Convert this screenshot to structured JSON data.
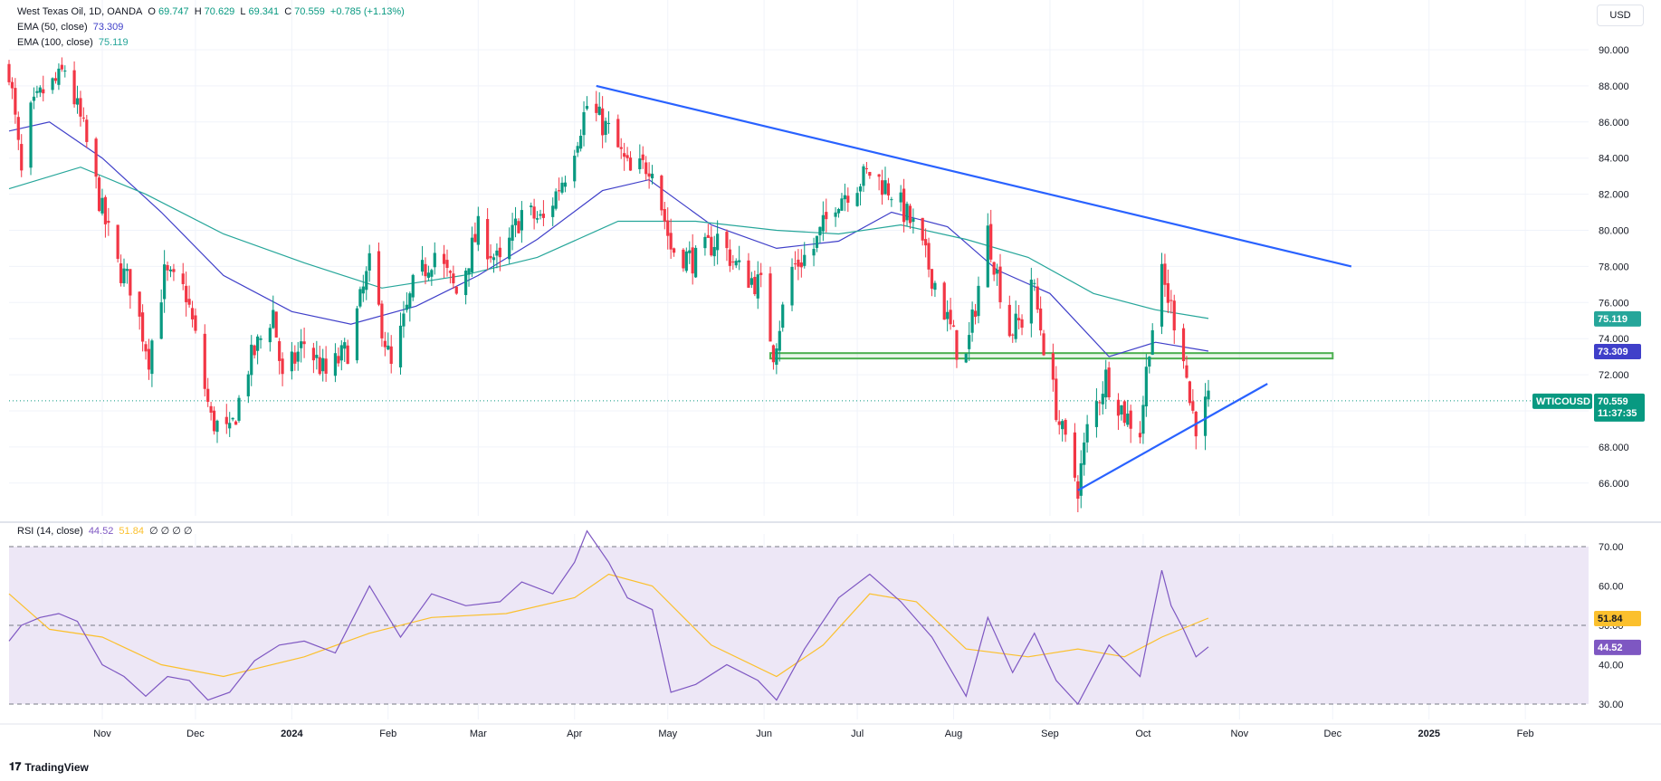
{
  "legend": {
    "symbol": "West Texas Oil, 1D, OANDA",
    "o_label": "O",
    "o": "69.747",
    "h_label": "H",
    "h": "70.629",
    "l_label": "L",
    "l": "69.341",
    "c_label": "C",
    "c": "70.559",
    "change": "+0.785 (+1.13%)",
    "ema50_label": "EMA (50, close)",
    "ema50_value": "73.309",
    "ema100_label": "EMA (100, close)",
    "ema100_value": "75.119",
    "rsi_label": "RSI (14, close)",
    "rsi_value": "44.52",
    "rsi_ma_value": "51.84",
    "rsi_extra": "∅ ∅ ∅ ∅"
  },
  "currency_button": "USD",
  "brand": "TradingView",
  "price_tag": {
    "symbol": "WTICOUSD",
    "price": "70.559",
    "countdown": "11:37:35"
  },
  "ema100_tag": "75.119",
  "ema50_tag": "73.309",
  "rsi_ma_tag": "51.84",
  "rsi_tag": "44.52",
  "colors": {
    "up": "#089981",
    "down": "#f23645",
    "ema50": "#3f3fc9",
    "ema100": "#26a69a",
    "trend": "#2962ff",
    "zone": "#4caf50",
    "rsi": "#7e57c2",
    "rsi_ma": "#fbc02d",
    "rsi_band": "#ede7f6",
    "grid": "#f0f3fa",
    "text": "#131722"
  },
  "chart_data": [
    {
      "type": "candlestick",
      "price_axis": {
        "min": 65,
        "max": 91,
        "ticks": [
          "90.000",
          "88.000",
          "86.000",
          "84.000",
          "82.000",
          "80.000",
          "78.000",
          "76.000",
          "74.000",
          "72.000",
          "70.000",
          "68.000",
          "66.000"
        ]
      },
      "time_axis": {
        "labels": [
          "Nov",
          "Dec",
          "2024",
          "Feb",
          "Mar",
          "Apr",
          "May",
          "Jun",
          "Jul",
          "Aug",
          "Sep",
          "Oct",
          "Nov",
          "Dec",
          "2025",
          "Feb"
        ]
      },
      "grid": true,
      "close_path": [
        [
          "2023-10-02",
          89.0
        ],
        [
          "2023-10-06",
          83.0
        ],
        [
          "2023-10-09",
          86.4
        ],
        [
          "2023-10-13",
          87.7
        ],
        [
          "2023-10-18",
          88.3
        ],
        [
          "2023-10-20",
          89.0
        ],
        [
          "2023-10-26",
          85.5
        ],
        [
          "2023-11-01",
          81.0
        ],
        [
          "2023-11-06",
          78.0
        ],
        [
          "2023-11-10",
          77.0
        ],
        [
          "2023-11-16",
          73.0
        ],
        [
          "2023-11-21",
          77.5
        ],
        [
          "2023-11-28",
          76.5
        ],
        [
          "2023-12-01",
          74.0
        ],
        [
          "2023-12-06",
          69.5
        ],
        [
          "2023-12-12",
          68.6
        ],
        [
          "2023-12-18",
          72.5
        ],
        [
          "2023-12-26",
          75.5
        ],
        [
          "2023-12-29",
          71.6
        ],
        [
          "2024-01-05",
          73.8
        ],
        [
          "2024-01-12",
          72.0
        ],
        [
          "2024-01-19",
          73.4
        ],
        [
          "2024-01-26",
          78.0
        ],
        [
          "2024-02-02",
          72.3
        ],
        [
          "2024-02-09",
          76.8
        ],
        [
          "2024-02-16",
          78.8
        ],
        [
          "2024-02-23",
          76.5
        ],
        [
          "2024-03-01",
          80.0
        ],
        [
          "2024-03-08",
          78.0
        ],
        [
          "2024-03-15",
          81.0
        ],
        [
          "2024-03-22",
          80.5
        ],
        [
          "2024-03-29",
          83.2
        ],
        [
          "2024-04-05",
          86.9
        ],
        [
          "2024-04-12",
          85.5
        ],
        [
          "2024-04-19",
          83.1
        ],
        [
          "2024-04-26",
          83.8
        ],
        [
          "2024-05-02",
          79.0
        ],
        [
          "2024-05-10",
          78.3
        ],
        [
          "2024-05-17",
          79.6
        ],
        [
          "2024-05-24",
          77.8
        ],
        [
          "2024-05-31",
          76.9
        ],
        [
          "2024-06-04",
          73.3
        ],
        [
          "2024-06-10",
          77.9
        ],
        [
          "2024-06-17",
          79.0
        ],
        [
          "2024-06-24",
          81.7
        ],
        [
          "2024-07-05",
          83.2
        ],
        [
          "2024-07-12",
          82.2
        ],
        [
          "2024-07-19",
          80.2
        ],
        [
          "2024-07-26",
          77.1
        ],
        [
          "2024-08-02",
          73.5
        ],
        [
          "2024-08-05",
          72.9
        ],
        [
          "2024-08-12",
          79.9
        ],
        [
          "2024-08-19",
          74.4
        ],
        [
          "2024-08-23",
          75.0
        ],
        [
          "2024-08-26",
          77.4
        ],
        [
          "2024-08-30",
          73.7
        ],
        [
          "2024-09-04",
          69.3
        ],
        [
          "2024-09-10",
          65.8
        ],
        [
          "2024-09-13",
          68.9
        ],
        [
          "2024-09-19",
          71.9
        ],
        [
          "2024-09-25",
          69.8
        ],
        [
          "2024-09-30",
          68.9
        ],
        [
          "2024-10-03",
          73.8
        ],
        [
          "2024-10-07",
          77.4
        ],
        [
          "2024-10-10",
          75.7
        ],
        [
          "2024-10-14",
          73.3
        ],
        [
          "2024-10-16",
          70.5
        ],
        [
          "2024-10-18",
          69.3
        ],
        [
          "2024-10-22",
          70.559
        ]
      ],
      "series": [
        {
          "name": "EMA (50, close)",
          "last": 73.309,
          "points": [
            [
              "2023-10-02",
              85.5
            ],
            [
              "2023-10-15",
              86.0
            ],
            [
              "2023-11-01",
              84.0
            ],
            [
              "2023-11-20",
              81.0
            ],
            [
              "2023-12-10",
              77.5
            ],
            [
              "2024-01-01",
              75.5
            ],
            [
              "2024-01-20",
              74.8
            ],
            [
              "2024-02-10",
              75.8
            ],
            [
              "2024-03-01",
              77.5
            ],
            [
              "2024-03-20",
              79.5
            ],
            [
              "2024-04-10",
              82.2
            ],
            [
              "2024-04-25",
              82.8
            ],
            [
              "2024-05-15",
              80.3
            ],
            [
              "2024-06-05",
              79.0
            ],
            [
              "2024-06-25",
              79.4
            ],
            [
              "2024-07-12",
              81.0
            ],
            [
              "2024-07-30",
              80.2
            ],
            [
              "2024-08-15",
              77.8
            ],
            [
              "2024-09-01",
              76.5
            ],
            [
              "2024-09-20",
              73.0
            ],
            [
              "2024-10-05",
              73.8
            ],
            [
              "2024-10-22",
              73.309
            ]
          ]
        },
        {
          "name": "EMA (100, close)",
          "last": 75.119,
          "points": [
            [
              "2023-10-02",
              82.3
            ],
            [
              "2023-10-25",
              83.5
            ],
            [
              "2023-11-15",
              82.0
            ],
            [
              "2023-12-10",
              79.8
            ],
            [
              "2024-01-05",
              78.2
            ],
            [
              "2024-01-30",
              76.8
            ],
            [
              "2024-02-25",
              77.5
            ],
            [
              "2024-03-20",
              78.5
            ],
            [
              "2024-04-15",
              80.5
            ],
            [
              "2024-05-10",
              80.5
            ],
            [
              "2024-06-05",
              80.0
            ],
            [
              "2024-06-25",
              79.8
            ],
            [
              "2024-07-15",
              80.3
            ],
            [
              "2024-08-05",
              79.5
            ],
            [
              "2024-08-25",
              78.5
            ],
            [
              "2024-09-15",
              76.5
            ],
            [
              "2024-10-05",
              75.6
            ],
            [
              "2024-10-22",
              75.119
            ]
          ]
        }
      ],
      "trendlines": [
        {
          "name": "descending resistance",
          "from": [
            "2024-04-08",
            88.0
          ],
          "to": [
            "2024-12-07",
            78.0
          ]
        },
        {
          "name": "ascending support",
          "from": [
            "2024-09-10",
            65.6
          ],
          "to": [
            "2024-11-10",
            71.5
          ]
        }
      ],
      "zones": [
        {
          "name": "support zone",
          "from": "2024-06-03",
          "to": "2024-12-01",
          "low": 72.9,
          "high": 73.2
        }
      ],
      "last_price": 70.559
    },
    {
      "type": "line",
      "title": "RSI (14, close)",
      "y_axis": {
        "min": 28,
        "max": 72,
        "ticks": [
          "70.00",
          "60.00",
          "50.00",
          "40.00",
          "30.00"
        ]
      },
      "levels": [
        70,
        50,
        30
      ],
      "series": [
        {
          "name": "RSI",
          "last": 44.52,
          "points": [
            [
              "2023-10-02",
              46
            ],
            [
              "2023-10-06",
              50
            ],
            [
              "2023-10-12",
              52
            ],
            [
              "2023-10-18",
              53
            ],
            [
              "2023-10-24",
              51
            ],
            [
              "2023-11-01",
              40
            ],
            [
              "2023-11-08",
              37
            ],
            [
              "2023-11-15",
              32
            ],
            [
              "2023-11-22",
              37
            ],
            [
              "2023-11-29",
              36
            ],
            [
              "2023-12-05",
              31
            ],
            [
              "2023-12-12",
              33
            ],
            [
              "2023-12-20",
              41
            ],
            [
              "2023-12-28",
              45
            ],
            [
              "2024-01-05",
              46
            ],
            [
              "2024-01-15",
              43
            ],
            [
              "2024-01-26",
              60
            ],
            [
              "2024-02-05",
              47
            ],
            [
              "2024-02-15",
              58
            ],
            [
              "2024-02-26",
              55
            ],
            [
              "2024-03-08",
              56
            ],
            [
              "2024-03-15",
              61
            ],
            [
              "2024-03-25",
              58
            ],
            [
              "2024-04-01",
              66
            ],
            [
              "2024-04-05",
              74
            ],
            [
              "2024-04-12",
              66
            ],
            [
              "2024-04-18",
              57
            ],
            [
              "2024-04-26",
              54
            ],
            [
              "2024-05-02",
              33
            ],
            [
              "2024-05-10",
              35
            ],
            [
              "2024-05-20",
              40
            ],
            [
              "2024-05-30",
              36
            ],
            [
              "2024-06-05",
              31
            ],
            [
              "2024-06-14",
              44
            ],
            [
              "2024-06-25",
              57
            ],
            [
              "2024-07-05",
              63
            ],
            [
              "2024-07-15",
              56
            ],
            [
              "2024-07-25",
              47
            ],
            [
              "2024-08-05",
              32
            ],
            [
              "2024-08-12",
              52
            ],
            [
              "2024-08-20",
              38
            ],
            [
              "2024-08-27",
              48
            ],
            [
              "2024-09-03",
              36
            ],
            [
              "2024-09-10",
              30
            ],
            [
              "2024-09-20",
              45
            ],
            [
              "2024-09-30",
              37
            ],
            [
              "2024-10-07",
              64
            ],
            [
              "2024-10-10",
              55
            ],
            [
              "2024-10-14",
              49
            ],
            [
              "2024-10-18",
              42
            ],
            [
              "2024-10-22",
              44.52
            ]
          ]
        },
        {
          "name": "RSI MA",
          "last": 51.84,
          "points": [
            [
              "2023-10-02",
              58
            ],
            [
              "2023-10-15",
              49
            ],
            [
              "2023-11-01",
              47
            ],
            [
              "2023-11-20",
              40
            ],
            [
              "2023-12-10",
              37
            ],
            [
              "2024-01-05",
              42
            ],
            [
              "2024-01-26",
              48
            ],
            [
              "2024-02-15",
              52
            ],
            [
              "2024-03-10",
              53
            ],
            [
              "2024-04-01",
              57
            ],
            [
              "2024-04-12",
              63
            ],
            [
              "2024-04-26",
              60
            ],
            [
              "2024-05-15",
              45
            ],
            [
              "2024-06-05",
              37
            ],
            [
              "2024-06-20",
              45
            ],
            [
              "2024-07-05",
              58
            ],
            [
              "2024-07-20",
              56
            ],
            [
              "2024-08-05",
              44
            ],
            [
              "2024-08-25",
              42
            ],
            [
              "2024-09-10",
              44
            ],
            [
              "2024-09-25",
              42
            ],
            [
              "2024-10-07",
              47
            ],
            [
              "2024-10-22",
              51.84
            ]
          ]
        }
      ]
    }
  ]
}
